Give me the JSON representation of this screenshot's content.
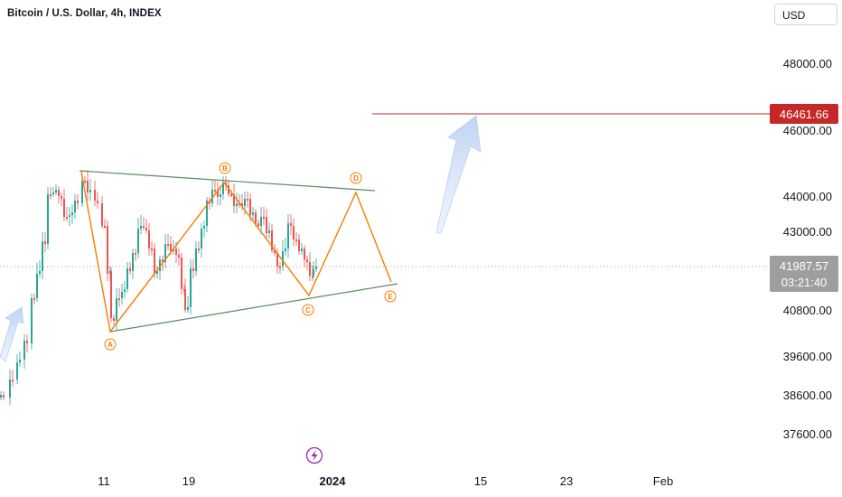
{
  "header": {
    "symbol_title": "Bitcoin / U.S. Dollar, 4h, INDEX",
    "currency": "USD"
  },
  "colors": {
    "up_candle": "#26a69a",
    "down_candle": "#ef5350",
    "pattern_lines": "#5b8c5a",
    "wave_path": "#f57c00",
    "target_line": "#c62828",
    "price_badge": "#9e9e9e",
    "arrow_fill": "#c5d8f5"
  },
  "chart_data": {
    "type": "candlestick",
    "interval": "4h",
    "y_axis_ticks": [
      "48000.00",
      "46000.00",
      "44000.00",
      "43000.00",
      "40800.00",
      "39600.00",
      "38600.00",
      "37600.00"
    ],
    "x_axis_ticks": [
      "11",
      "19",
      "2024",
      "15",
      "23",
      "Feb"
    ],
    "target_level": {
      "value": 46461.66,
      "label": "46461.66"
    },
    "current_price": {
      "value": 41987.57,
      "label": "41987.57",
      "countdown": "03:21:40"
    },
    "wave_labels": [
      "A",
      "B",
      "C",
      "D",
      "E"
    ],
    "wave_points_estimated": [
      {
        "label": "A",
        "price": 40500
      },
      {
        "label": "B",
        "price": 44700
      },
      {
        "label": "C",
        "price": 41300
      },
      {
        "label": "D",
        "price": 44300
      },
      {
        "label": "E",
        "price": 41400
      }
    ],
    "triangle": {
      "upper_line": {
        "start_price": 45100,
        "end_price": 44300
      },
      "lower_line": {
        "start_price": 40500,
        "end_price": 41600
      }
    },
    "grid": false,
    "legend": "none"
  }
}
